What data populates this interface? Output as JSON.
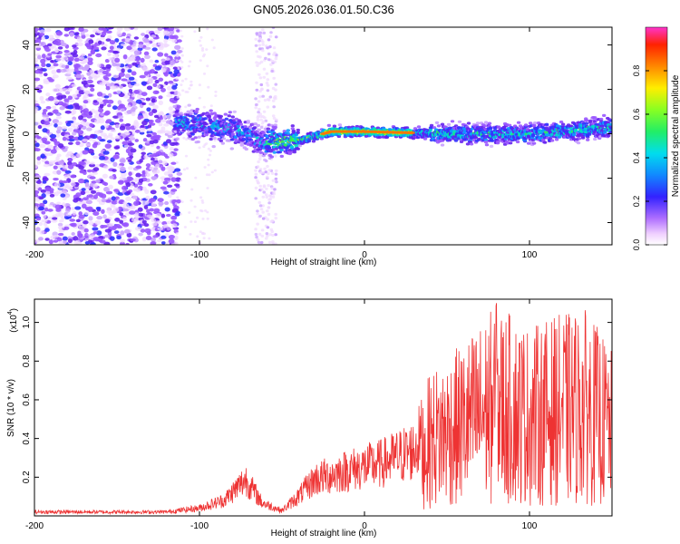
{
  "title": "GN05.2026.036.01.50.C36",
  "chart_data": [
    {
      "type": "heatmap",
      "xlabel": "Height of straight line (km)",
      "ylabel": "Frequency (Hz)",
      "xlim": [
        -200,
        150
      ],
      "ylim": [
        -50,
        48
      ],
      "xticks": [
        -200,
        -100,
        0,
        100
      ],
      "xtick_labels": [
        "-200",
        "-100",
        "0",
        "100"
      ],
      "yticks": [
        -40,
        -20,
        0,
        20,
        40
      ],
      "ytick_labels": [
        "-40",
        "-20",
        "0",
        "20",
        "40"
      ],
      "colorbar": {
        "label": "Normalized spectral amplitude",
        "range": [
          0,
          1
        ],
        "ticks": [
          0.0,
          0.2,
          0.4,
          0.6,
          0.8
        ],
        "tick_labels": [
          "0.0",
          "0.2",
          "0.4",
          "0.6",
          "0.8"
        ]
      },
      "ridge_center_hz": [
        {
          "x": -110,
          "y": 5
        },
        {
          "x": -80,
          "y": 2
        },
        {
          "x": -60,
          "y": -4
        },
        {
          "x": -40,
          "y": -3
        },
        {
          "x": -20,
          "y": 1
        },
        {
          "x": 0,
          "y": 1
        },
        {
          "x": 50,
          "y": 0
        },
        {
          "x": 100,
          "y": 0
        },
        {
          "x": 150,
          "y": 3
        }
      ]
    },
    {
      "type": "line",
      "xlabel": "Height of straight line (km)",
      "ylabel": "SNR (10 * v/v)",
      "y_scale_label": "(x10",
      "y_scale_exp": "4",
      "y_scale_close": ")",
      "xlim": [
        -200,
        150
      ],
      "ylim": [
        0,
        1.12
      ],
      "xticks": [
        -200,
        -100,
        0,
        100
      ],
      "xtick_labels": [
        "-200",
        "-100",
        "0",
        "100"
      ],
      "yticks": [
        0.2,
        0.4,
        0.6,
        0.8,
        1.0
      ],
      "ytick_labels": [
        "0.2",
        "0.4",
        "0.6",
        "0.8",
        "1.0"
      ],
      "color": "#ee3333",
      "envelope": [
        {
          "x": -200,
          "y": 0.03
        },
        {
          "x": -120,
          "y": 0.03
        },
        {
          "x": -100,
          "y": 0.06
        },
        {
          "x": -85,
          "y": 0.12
        },
        {
          "x": -72,
          "y": 0.28
        },
        {
          "x": -62,
          "y": 0.1
        },
        {
          "x": -50,
          "y": 0.04
        },
        {
          "x": -40,
          "y": 0.15
        },
        {
          "x": -30,
          "y": 0.28
        },
        {
          "x": -10,
          "y": 0.35
        },
        {
          "x": 10,
          "y": 0.4
        },
        {
          "x": 30,
          "y": 0.5
        },
        {
          "x": 40,
          "y": 0.75
        },
        {
          "x": 60,
          "y": 0.9
        },
        {
          "x": 80,
          "y": 1.1
        },
        {
          "x": 100,
          "y": 0.98
        },
        {
          "x": 120,
          "y": 1.05
        },
        {
          "x": 135,
          "y": 1.07
        },
        {
          "x": 150,
          "y": 0.85
        }
      ],
      "peak": {
        "x": 80,
        "y": 1.1
      }
    }
  ]
}
